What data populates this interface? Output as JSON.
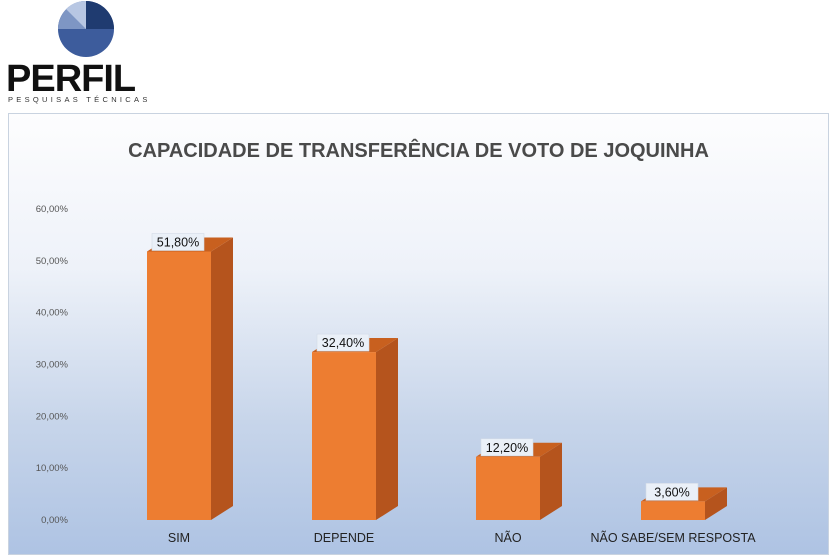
{
  "brand": {
    "name": "PERFIL",
    "subtitle": "PESQUISAS TÉCNICAS",
    "colors": [
      "#1f3b70",
      "#3d5c9c",
      "#7e96c4",
      "#b8c7e3"
    ]
  },
  "chart_data": {
    "type": "bar",
    "title": "CAPACIDADE DE TRANSFERÊNCIA DE VOTO DE JOQUINHA",
    "categories": [
      "SIM",
      "DEPENDE",
      "NÃO",
      "NÃO SABE/SEM RESPOSTA"
    ],
    "values": [
      51.8,
      32.4,
      12.2,
      3.6
    ],
    "value_labels": [
      "51,80%",
      "32,40%",
      "12,20%",
      "3,60%"
    ],
    "yticks": [
      "0,00%",
      "10,00%",
      "20,00%",
      "30,00%",
      "40,00%",
      "50,00%",
      "60,00%"
    ],
    "ylim": [
      0,
      60
    ],
    "xlabel": "",
    "ylabel": "",
    "grid": false,
    "bar_color": "#ed7d31",
    "bar_side_color": "#b5541d",
    "bar_top_color": "#c8601f",
    "style": "3d-column"
  }
}
